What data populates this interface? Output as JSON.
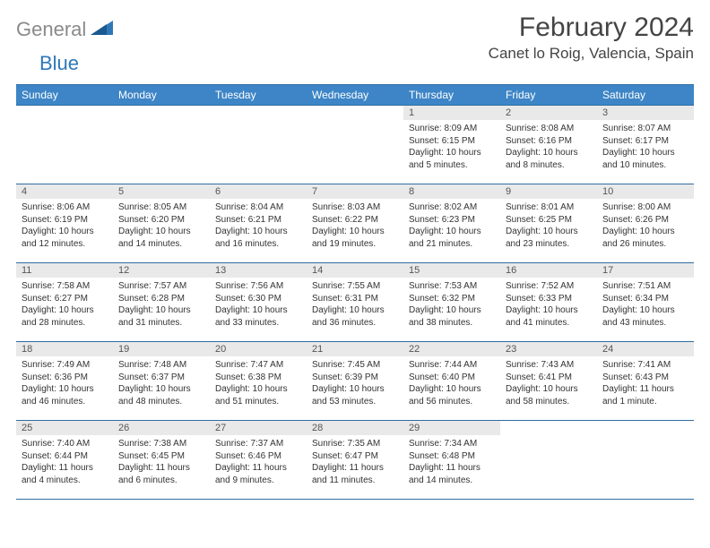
{
  "brand": {
    "part1": "General",
    "part2": "Blue"
  },
  "title": "February 2024",
  "location": "Canet lo Roig, Valencia, Spain",
  "colors": {
    "header_bg": "#3d85c6",
    "header_border": "#2f6da3",
    "daynum_bg": "#e9e9e9",
    "text": "#333333",
    "brand_gray": "#8a8a8a",
    "brand_blue": "#2f78b7"
  },
  "weekdays": [
    "Sunday",
    "Monday",
    "Tuesday",
    "Wednesday",
    "Thursday",
    "Friday",
    "Saturday"
  ],
  "weeks": [
    [
      null,
      null,
      null,
      null,
      {
        "n": "1",
        "sr": "8:09 AM",
        "ss": "6:15 PM",
        "dl": "10 hours and 5 minutes."
      },
      {
        "n": "2",
        "sr": "8:08 AM",
        "ss": "6:16 PM",
        "dl": "10 hours and 8 minutes."
      },
      {
        "n": "3",
        "sr": "8:07 AM",
        "ss": "6:17 PM",
        "dl": "10 hours and 10 minutes."
      }
    ],
    [
      {
        "n": "4",
        "sr": "8:06 AM",
        "ss": "6:19 PM",
        "dl": "10 hours and 12 minutes."
      },
      {
        "n": "5",
        "sr": "8:05 AM",
        "ss": "6:20 PM",
        "dl": "10 hours and 14 minutes."
      },
      {
        "n": "6",
        "sr": "8:04 AM",
        "ss": "6:21 PM",
        "dl": "10 hours and 16 minutes."
      },
      {
        "n": "7",
        "sr": "8:03 AM",
        "ss": "6:22 PM",
        "dl": "10 hours and 19 minutes."
      },
      {
        "n": "8",
        "sr": "8:02 AM",
        "ss": "6:23 PM",
        "dl": "10 hours and 21 minutes."
      },
      {
        "n": "9",
        "sr": "8:01 AM",
        "ss": "6:25 PM",
        "dl": "10 hours and 23 minutes."
      },
      {
        "n": "10",
        "sr": "8:00 AM",
        "ss": "6:26 PM",
        "dl": "10 hours and 26 minutes."
      }
    ],
    [
      {
        "n": "11",
        "sr": "7:58 AM",
        "ss": "6:27 PM",
        "dl": "10 hours and 28 minutes."
      },
      {
        "n": "12",
        "sr": "7:57 AM",
        "ss": "6:28 PM",
        "dl": "10 hours and 31 minutes."
      },
      {
        "n": "13",
        "sr": "7:56 AM",
        "ss": "6:30 PM",
        "dl": "10 hours and 33 minutes."
      },
      {
        "n": "14",
        "sr": "7:55 AM",
        "ss": "6:31 PM",
        "dl": "10 hours and 36 minutes."
      },
      {
        "n": "15",
        "sr": "7:53 AM",
        "ss": "6:32 PM",
        "dl": "10 hours and 38 minutes."
      },
      {
        "n": "16",
        "sr": "7:52 AM",
        "ss": "6:33 PM",
        "dl": "10 hours and 41 minutes."
      },
      {
        "n": "17",
        "sr": "7:51 AM",
        "ss": "6:34 PM",
        "dl": "10 hours and 43 minutes."
      }
    ],
    [
      {
        "n": "18",
        "sr": "7:49 AM",
        "ss": "6:36 PM",
        "dl": "10 hours and 46 minutes."
      },
      {
        "n": "19",
        "sr": "7:48 AM",
        "ss": "6:37 PM",
        "dl": "10 hours and 48 minutes."
      },
      {
        "n": "20",
        "sr": "7:47 AM",
        "ss": "6:38 PM",
        "dl": "10 hours and 51 minutes."
      },
      {
        "n": "21",
        "sr": "7:45 AM",
        "ss": "6:39 PM",
        "dl": "10 hours and 53 minutes."
      },
      {
        "n": "22",
        "sr": "7:44 AM",
        "ss": "6:40 PM",
        "dl": "10 hours and 56 minutes."
      },
      {
        "n": "23",
        "sr": "7:43 AM",
        "ss": "6:41 PM",
        "dl": "10 hours and 58 minutes."
      },
      {
        "n": "24",
        "sr": "7:41 AM",
        "ss": "6:43 PM",
        "dl": "11 hours and 1 minute."
      }
    ],
    [
      {
        "n": "25",
        "sr": "7:40 AM",
        "ss": "6:44 PM",
        "dl": "11 hours and 4 minutes."
      },
      {
        "n": "26",
        "sr": "7:38 AM",
        "ss": "6:45 PM",
        "dl": "11 hours and 6 minutes."
      },
      {
        "n": "27",
        "sr": "7:37 AM",
        "ss": "6:46 PM",
        "dl": "11 hours and 9 minutes."
      },
      {
        "n": "28",
        "sr": "7:35 AM",
        "ss": "6:47 PM",
        "dl": "11 hours and 11 minutes."
      },
      {
        "n": "29",
        "sr": "7:34 AM",
        "ss": "6:48 PM",
        "dl": "11 hours and 14 minutes."
      },
      null,
      null
    ]
  ],
  "labels": {
    "sunrise": "Sunrise:",
    "sunset": "Sunset:",
    "daylight": "Daylight:"
  }
}
